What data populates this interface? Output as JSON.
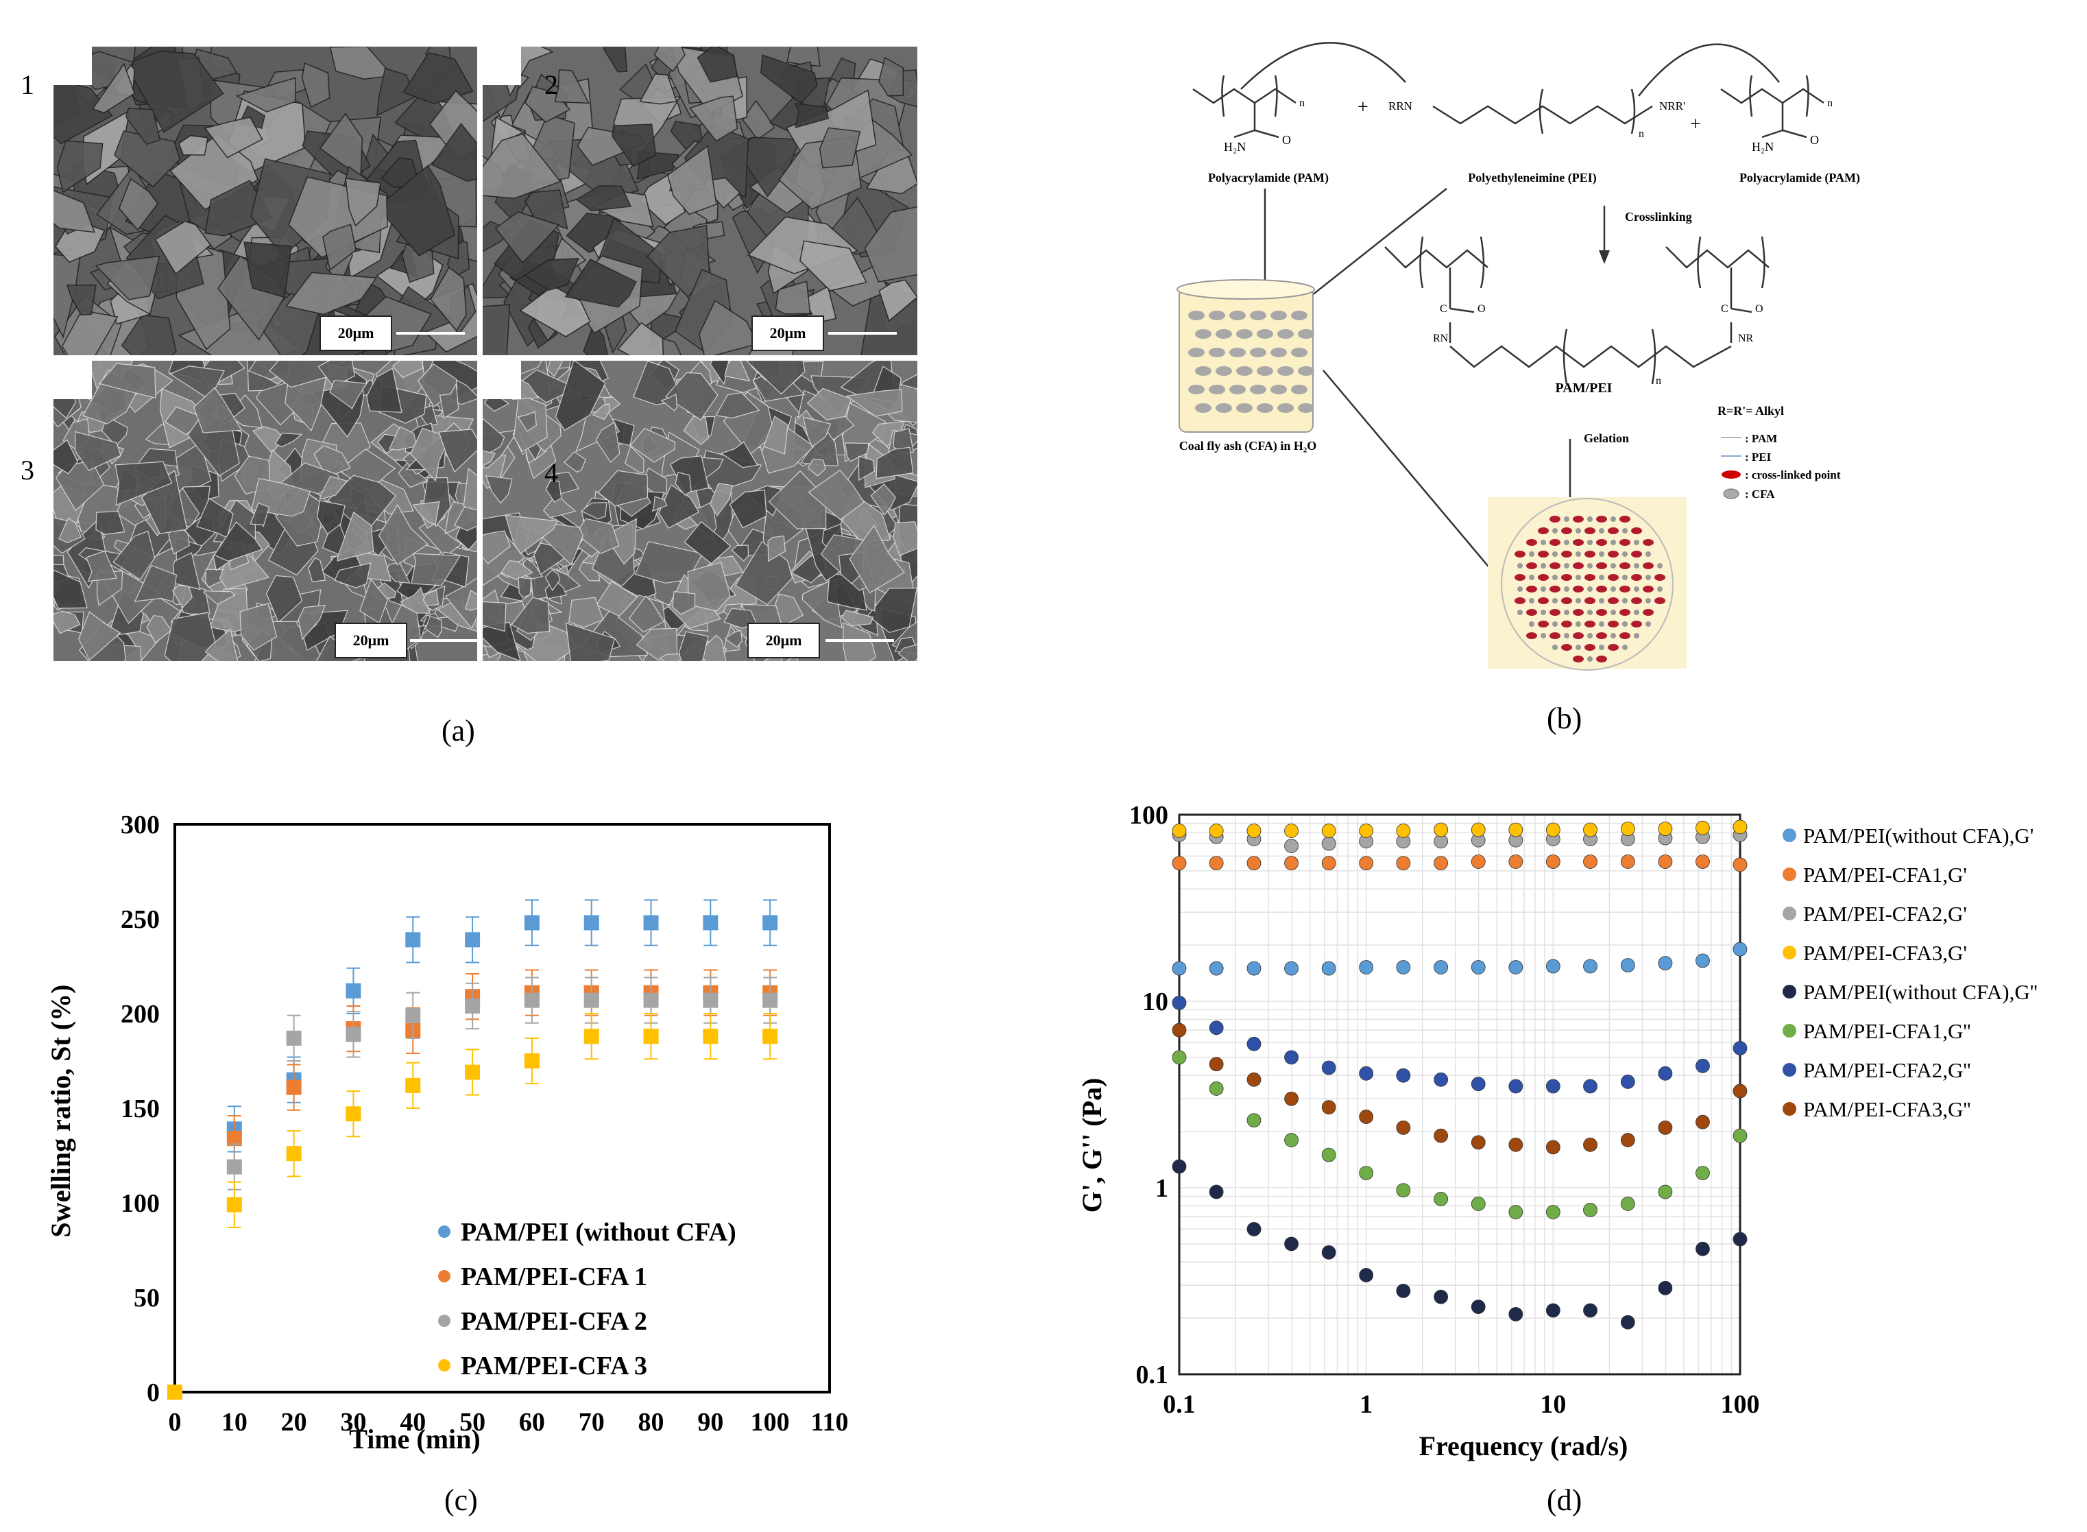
{
  "panels": {
    "a": {
      "caption": "(a)",
      "image_numbers": [
        "1",
        "2",
        "3",
        "4"
      ],
      "scale_bar": "20μm"
    },
    "b": {
      "caption": "(b)",
      "labels": {
        "pam_left": "Polyacrylamide (PAM)",
        "pei": "Polyethyleneimine (PEI)",
        "pam_right": "Polyacrylamide (PAM)",
        "crosslinking": "Crosslinking",
        "pam_pei": "PAM/PEI",
        "cfa": "Coal fly ash (CFA) in H₂O",
        "gelation": "Gelation",
        "r_def": "R=R'= Alkyl",
        "leg_pam": ": PAM",
        "leg_pei": ": PEI",
        "leg_cross": ": cross-linked point",
        "leg_cfa": ": CFA"
      },
      "chem": {
        "h2n": "H₂N",
        "o": "O",
        "n": "n",
        "rrn": "RRN",
        "nrr": "NRR'",
        "plus": "+",
        "rn": "RN",
        "nr": "NR",
        "c": "C"
      }
    },
    "c": {
      "caption": "(c)"
    },
    "d": {
      "caption": "(d)"
    }
  },
  "chart_data": [
    {
      "type": "scatter",
      "panel": "c",
      "xlabel": "Time (min)",
      "ylabel": "Swelling ratio, St (%)",
      "xlim": [
        0,
        110
      ],
      "ylim": [
        0,
        300
      ],
      "xticks": [
        0,
        10,
        20,
        30,
        40,
        50,
        60,
        70,
        80,
        90,
        100,
        110
      ],
      "yticks": [
        0,
        50,
        100,
        150,
        200,
        250,
        300
      ],
      "legend_position": "bottom-right",
      "x": [
        0,
        10,
        20,
        30,
        40,
        50,
        60,
        70,
        80,
        90,
        100
      ],
      "series": [
        {
          "name": "PAM/PEI (without CFA)",
          "color": "#5b9bd5",
          "values": [
            0,
            139,
            165,
            212,
            239,
            239,
            248,
            248,
            248,
            248,
            248
          ]
        },
        {
          "name": "PAM/PEI-CFA 1",
          "color": "#ed7d31",
          "values": [
            0,
            134,
            161,
            192,
            191,
            209,
            211,
            211,
            211,
            211,
            211
          ]
        },
        {
          "name": "PAM/PEI-CFA 2",
          "color": "#a5a5a5",
          "values": [
            0,
            119,
            187,
            189,
            199,
            204,
            207,
            207,
            207,
            207,
            207
          ]
        },
        {
          "name": "PAM/PEI-CFA 3",
          "color": "#ffc000",
          "values": [
            0,
            99,
            126,
            147,
            162,
            169,
            175,
            188,
            188,
            188,
            188
          ]
        }
      ],
      "error_bar": 12
    },
    {
      "type": "scatter",
      "panel": "d",
      "xlabel": "Frequency (rad/s)",
      "ylabel": "G', G'' (Pa)",
      "xscale": "log",
      "yscale": "log",
      "xlim": [
        0.1,
        100
      ],
      "ylim": [
        0.1,
        100
      ],
      "xticks": [
        "0.1",
        "1",
        "10",
        "100"
      ],
      "yticks": [
        "0.1",
        "1",
        "10",
        "100"
      ],
      "legend_position": "right",
      "x": [
        0.1,
        0.158,
        0.251,
        0.398,
        0.631,
        1,
        1.58,
        2.51,
        3.98,
        6.31,
        10,
        15.8,
        25.1,
        39.8,
        63.1,
        100
      ],
      "series": [
        {
          "name": "PAM/PEI(without CFA),G'",
          "color": "#5b9bd5",
          "values": [
            15,
            15,
            15,
            15,
            15,
            15.2,
            15.2,
            15.2,
            15.2,
            15.2,
            15.4,
            15.4,
            15.6,
            16,
            16.5,
            19
          ]
        },
        {
          "name": "PAM/PEI-CFA1,G'",
          "color": "#ed7d31",
          "values": [
            55,
            55,
            55,
            55,
            55,
            55,
            55,
            55,
            56,
            56,
            56,
            56,
            56,
            56,
            56,
            54
          ]
        },
        {
          "name": "PAM/PEI-CFA2,G'",
          "color": "#a5a5a5",
          "values": [
            78,
            76,
            74,
            68,
            70,
            72,
            72,
            72,
            73,
            73,
            74,
            74,
            74,
            75,
            76,
            78
          ]
        },
        {
          "name": "PAM/PEI-CFA3,G'",
          "color": "#ffc000",
          "values": [
            82,
            82,
            82,
            82,
            82,
            82,
            82,
            83,
            83,
            83,
            83,
            83,
            84,
            84,
            85,
            86
          ]
        },
        {
          "name": "PAM/PEI(without CFA),G''",
          "color": "#1f2a4a",
          "values": [
            1.3,
            0.95,
            0.6,
            0.5,
            0.45,
            0.34,
            0.28,
            0.26,
            0.23,
            0.21,
            0.22,
            0.22,
            0.19,
            0.29,
            0.47,
            0.53
          ]
        },
        {
          "name": "PAM/PEI-CFA1,G''",
          "color": "#70ad47",
          "values": [
            5,
            3.4,
            2.3,
            1.8,
            1.5,
            1.2,
            0.97,
            0.87,
            0.82,
            0.74,
            0.74,
            0.76,
            0.82,
            0.95,
            1.2,
            1.9
          ]
        },
        {
          "name": "PAM/PEI-CFA2,G''",
          "color": "#2f52a8",
          "values": [
            9.8,
            7.2,
            5.9,
            5,
            4.4,
            4.1,
            4,
            3.8,
            3.6,
            3.5,
            3.5,
            3.5,
            3.7,
            4.1,
            4.5,
            5.6
          ]
        },
        {
          "name": "PAM/PEI-CFA3,G''",
          "color": "#9e480e",
          "values": [
            7,
            4.6,
            3.8,
            3,
            2.7,
            2.4,
            2.1,
            1.9,
            1.75,
            1.7,
            1.65,
            1.7,
            1.8,
            2.1,
            2.25,
            3.3
          ]
        }
      ]
    }
  ]
}
